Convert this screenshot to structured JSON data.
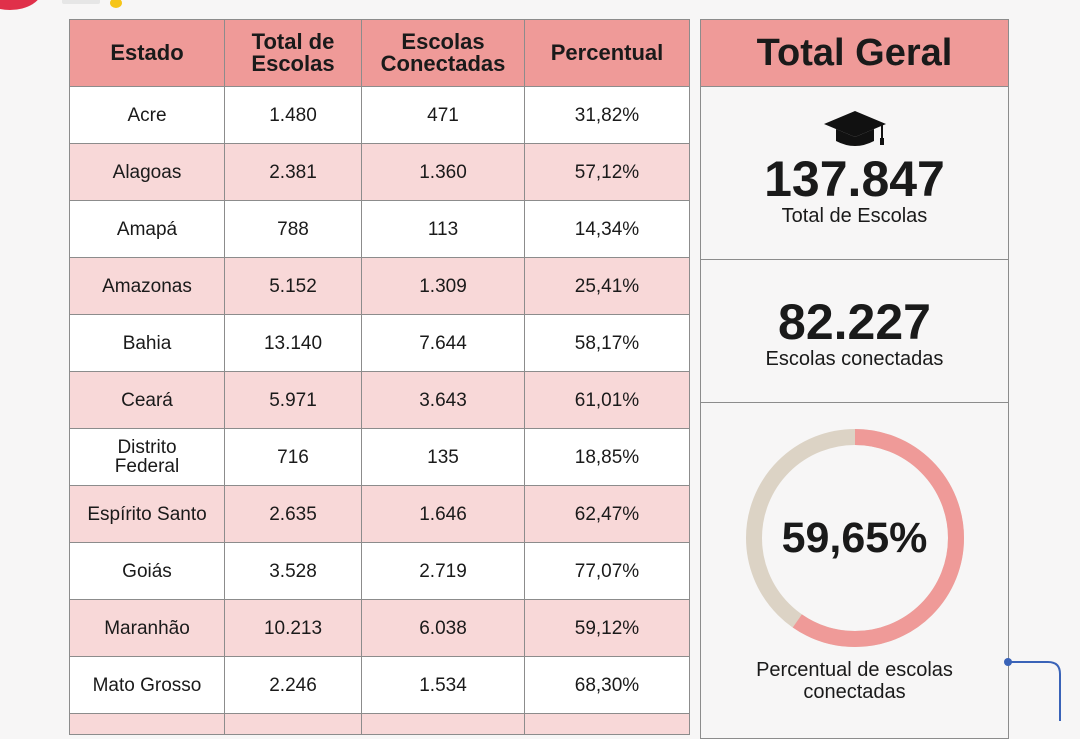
{
  "table": {
    "headers": [
      "Estado",
      "Total de Escolas",
      "Escolas Conectadas",
      "Percentual"
    ],
    "rows": [
      [
        "Acre",
        "1.480",
        "471",
        "31,82%"
      ],
      [
        "Alagoas",
        "2.381",
        "1.360",
        "57,12%"
      ],
      [
        "Amapá",
        "788",
        "113",
        "14,34%"
      ],
      [
        "Amazonas",
        "5.152",
        "1.309",
        "25,41%"
      ],
      [
        "Bahia",
        "13.140",
        "7.644",
        "58,17%"
      ],
      [
        "Ceará",
        "5.971",
        "3.643",
        "61,01%"
      ],
      [
        "Distrito Federal",
        "716",
        "135",
        "18,85%"
      ],
      [
        "Espírito Santo",
        "2.635",
        "1.646",
        "62,47%"
      ],
      [
        "Goiás",
        "3.528",
        "2.719",
        "77,07%"
      ],
      [
        "Maranhão",
        "10.213",
        "6.038",
        "59,12%"
      ],
      [
        "Mato Grosso",
        "2.246",
        "1.534",
        "68,30%"
      ]
    ]
  },
  "total": {
    "title": "Total Geral",
    "total_escolas_value": "137.847",
    "total_escolas_label": "Total de Escolas",
    "escolas_conectadas_value": "82.227",
    "escolas_conectadas_label": "Escolas conectadas",
    "percentual_value": "59,65%",
    "percentual_fraction": 0.5965,
    "percentual_label": "Percentual de escolas conectadas",
    "icon": "graduation-cap-icon"
  },
  "colors": {
    "header": "#ef9a98",
    "row_alt": "#f8d8d8",
    "donut_fill": "#ef9a98",
    "donut_rest": "#dcd3c5",
    "connector": "#3a63b8"
  }
}
